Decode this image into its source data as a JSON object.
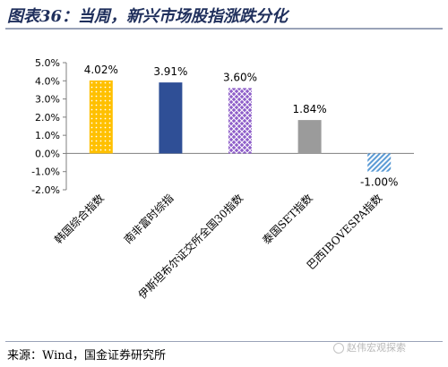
{
  "title": "图表36：当周，新兴市场股指涨跌分化",
  "source": "来源：Wind，国金证券研究所",
  "watermark": "赵伟宏观探索",
  "chart_data": {
    "type": "bar",
    "categories": [
      "韩国综合指数",
      "南非富时综指",
      "伊斯坦布尔证交所全国30指数",
      "泰国SET指数",
      "巴西IBOVESPA指数"
    ],
    "values": [
      4.02,
      3.91,
      3.6,
      1.84,
      -1.0
    ],
    "data_labels": [
      "4.02%",
      "3.91%",
      "3.60%",
      "1.84%",
      "-1.00%"
    ],
    "bar_styles": [
      {
        "color": "#ffc000",
        "pattern": "dots"
      },
      {
        "color": "#2f4f96",
        "pattern": "solid"
      },
      {
        "color": "#8e5ec9",
        "pattern": "lattice"
      },
      {
        "color": "#9b9b9b",
        "pattern": "solid"
      },
      {
        "color": "#5b9bd5",
        "pattern": "diagonal"
      }
    ],
    "ylim": [
      -2.0,
      5.0
    ],
    "yticks": [
      5.0,
      4.0,
      3.0,
      2.0,
      1.0,
      0.0,
      -1.0,
      -2.0
    ],
    "ytick_labels": [
      "5.0%",
      "4.0%",
      "3.0%",
      "2.0%",
      "1.0%",
      "0.0%",
      "-1.0%",
      "-2.0%"
    ],
    "xlabel": "",
    "ylabel": "",
    "grid": false,
    "legend": "none"
  }
}
